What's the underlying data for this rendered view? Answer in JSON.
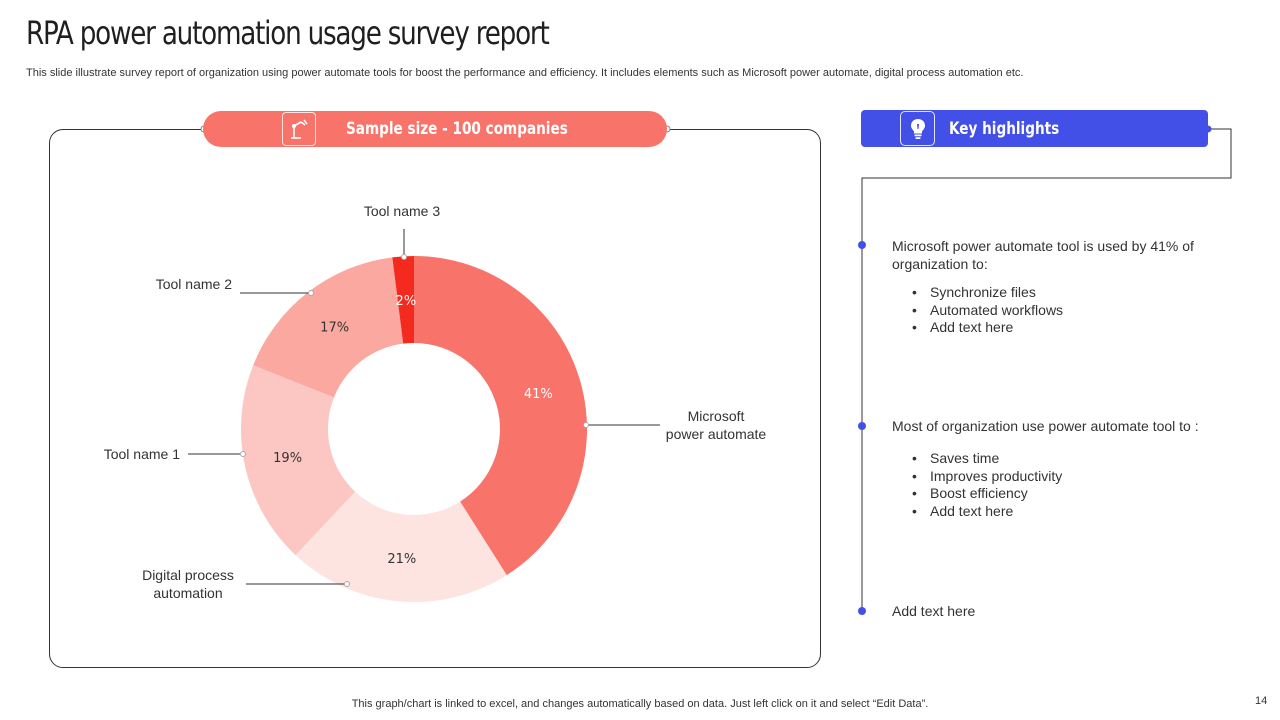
{
  "header": {
    "title": "RPA power automation usage survey report",
    "subtitle": "This slide illustrate survey report of organization using power automate tools for boost the performance and efficiency. It includes elements such as Microsoft power automate, digital process automation etc."
  },
  "sample": {
    "label": "Sample size - 100 companies",
    "icon": "robot-arm-icon"
  },
  "highlights": {
    "title": "Key highlights",
    "icon": "lightbulb-icon",
    "point1": {
      "text": "Microsoft power automate tool is used by 41% of organization to:",
      "bullets": [
        "Synchronize files",
        "Automated workflows",
        "Add text here"
      ]
    },
    "point2": {
      "text": "Most of organization use power automate tool to :",
      "bullets": [
        "Saves time",
        "Improves productivity",
        "Boost efficiency",
        "Add text here"
      ]
    },
    "point3": {
      "text": "Add text here"
    }
  },
  "chart_data": {
    "type": "pie",
    "style": "donut",
    "slices": [
      {
        "label": "Microsoft power automate",
        "value": 41,
        "display": "41%",
        "color": "#f8736a",
        "text_color": "#ffffff"
      },
      {
        "label": "Digital process automation",
        "value": 21,
        "display": "21%",
        "color": "#fde4e1",
        "text_color": "#333333"
      },
      {
        "label": "Tool name 1",
        "value": 19,
        "display": "19%",
        "color": "#fcc7c2",
        "text_color": "#333333"
      },
      {
        "label": "Tool name 2",
        "value": 17,
        "display": "17%",
        "color": "#fba8a1",
        "text_color": "#333333"
      },
      {
        "label": "Tool name 3",
        "value": 2,
        "display": "2%",
        "color": "#f52a1e",
        "text_color": "#ffffff"
      }
    ]
  },
  "colors": {
    "accent_red": "#f8736a",
    "accent_blue": "#4350e8"
  },
  "footer": {
    "note": "This graph/chart is linked to excel, and changes automatically based on data. Just left click on it and select “Edit Data”.",
    "page": "14"
  }
}
